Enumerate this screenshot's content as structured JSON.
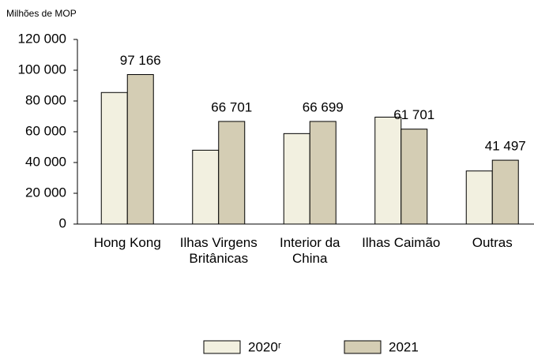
{
  "chart_data": {
    "type": "bar",
    "y_axis_label": "Milhões de MOP",
    "categories": [
      "Hong Kong",
      "Ilhas Virgens Britânicas",
      "Interior da China",
      "Ilhas Caimão",
      "Outras"
    ],
    "series": [
      {
        "name": "2020ʳ",
        "color": "#f2f0e0",
        "values": [
          85500,
          48000,
          58800,
          69500,
          34500
        ]
      },
      {
        "name": "2021",
        "color": "#d4cdb4",
        "values": [
          97166,
          66701,
          66699,
          61701,
          41497
        ],
        "value_labels": [
          "97 166",
          "66 701",
          "66 699",
          "61 701",
          "41 497"
        ]
      }
    ],
    "ylim": [
      0,
      120000
    ],
    "yticks": [
      0,
      {
        "value": 20000,
        "label": "20 000"
      },
      {
        "value": 40000,
        "label": "40 000"
      },
      {
        "value": 60000,
        "label": "60 000"
      },
      {
        "value": 80000,
        "label": "80 000"
      },
      {
        "value": 100000,
        "label": "100 000"
      },
      {
        "value": 120000,
        "label": "120 000"
      }
    ],
    "legend": "bottom"
  }
}
